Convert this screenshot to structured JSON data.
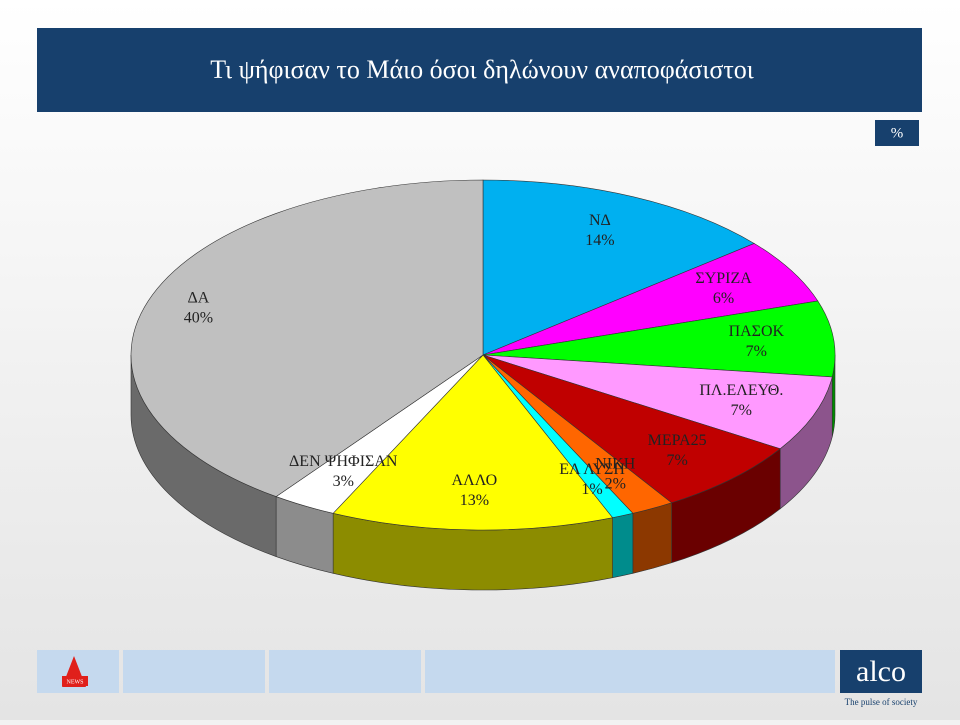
{
  "chart_data": {
    "type": "pie",
    "title": "Τι ψήφισαν το Μάιο όσοι δηλώνουν αναποφάσιστοι",
    "unit_note": "%",
    "categories": [
      "ΝΔ",
      "ΣΥΡΙΖΑ",
      "ΠΑΣΟΚ",
      "ΠΛ.ΕΛΕΥΘ.",
      "ΜΕΡΑ25",
      "ΝΙΚΗ",
      "ΕΛ ΛΥΣΗ",
      "ΑΛΛΟ",
      "ΔΕΝ ΨΗΦΙΣΑΝ",
      "ΔΑ"
    ],
    "values": [
      14,
      6,
      7,
      7,
      7,
      2,
      1,
      13,
      3,
      40
    ],
    "value_labels": [
      "14%",
      "6%",
      "7%",
      "7%",
      "7%",
      "2%",
      "1%",
      "13%",
      "3%",
      "40%"
    ],
    "colors": [
      "#00b0f0",
      "#ff00ff",
      "#00ff00",
      "#ff99ff",
      "#c00000",
      "#ff6600",
      "#00ffff",
      "#ffff00",
      "#ffffff",
      "#c0c0c0"
    ]
  },
  "footer": {
    "brand": "alco",
    "tagline": "The pulse of society",
    "news": "NEWS"
  }
}
